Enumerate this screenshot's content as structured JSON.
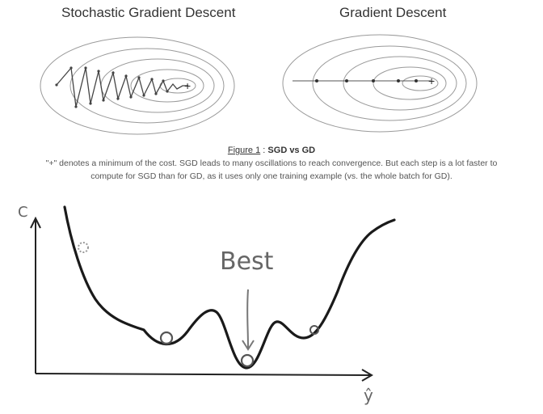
{
  "top_panels": {
    "sgd_title": "Stochastic Gradient Descent",
    "gd_title": "Gradient Descent",
    "minimum_marker": "+"
  },
  "caption": {
    "figure_label": "Figure 1",
    "separator": ":",
    "figure_title": "SGD vs GD",
    "line1": "\"+\" denotes a minimum of the cost. SGD leads to many oscillations to reach convergence. But each step is a lot faster to",
    "line2": "compute for SGD than for GD, as it uses only one training example (vs. the whole batch for GD)."
  },
  "loss_sketch": {
    "y_axis_label": "C",
    "x_axis_label": "ŷ",
    "annotation": "Best"
  },
  "colors": {
    "contour": "#9a9a9a",
    "path": "#444444",
    "curve": "#1a1a1a",
    "annotation": "#777777"
  }
}
